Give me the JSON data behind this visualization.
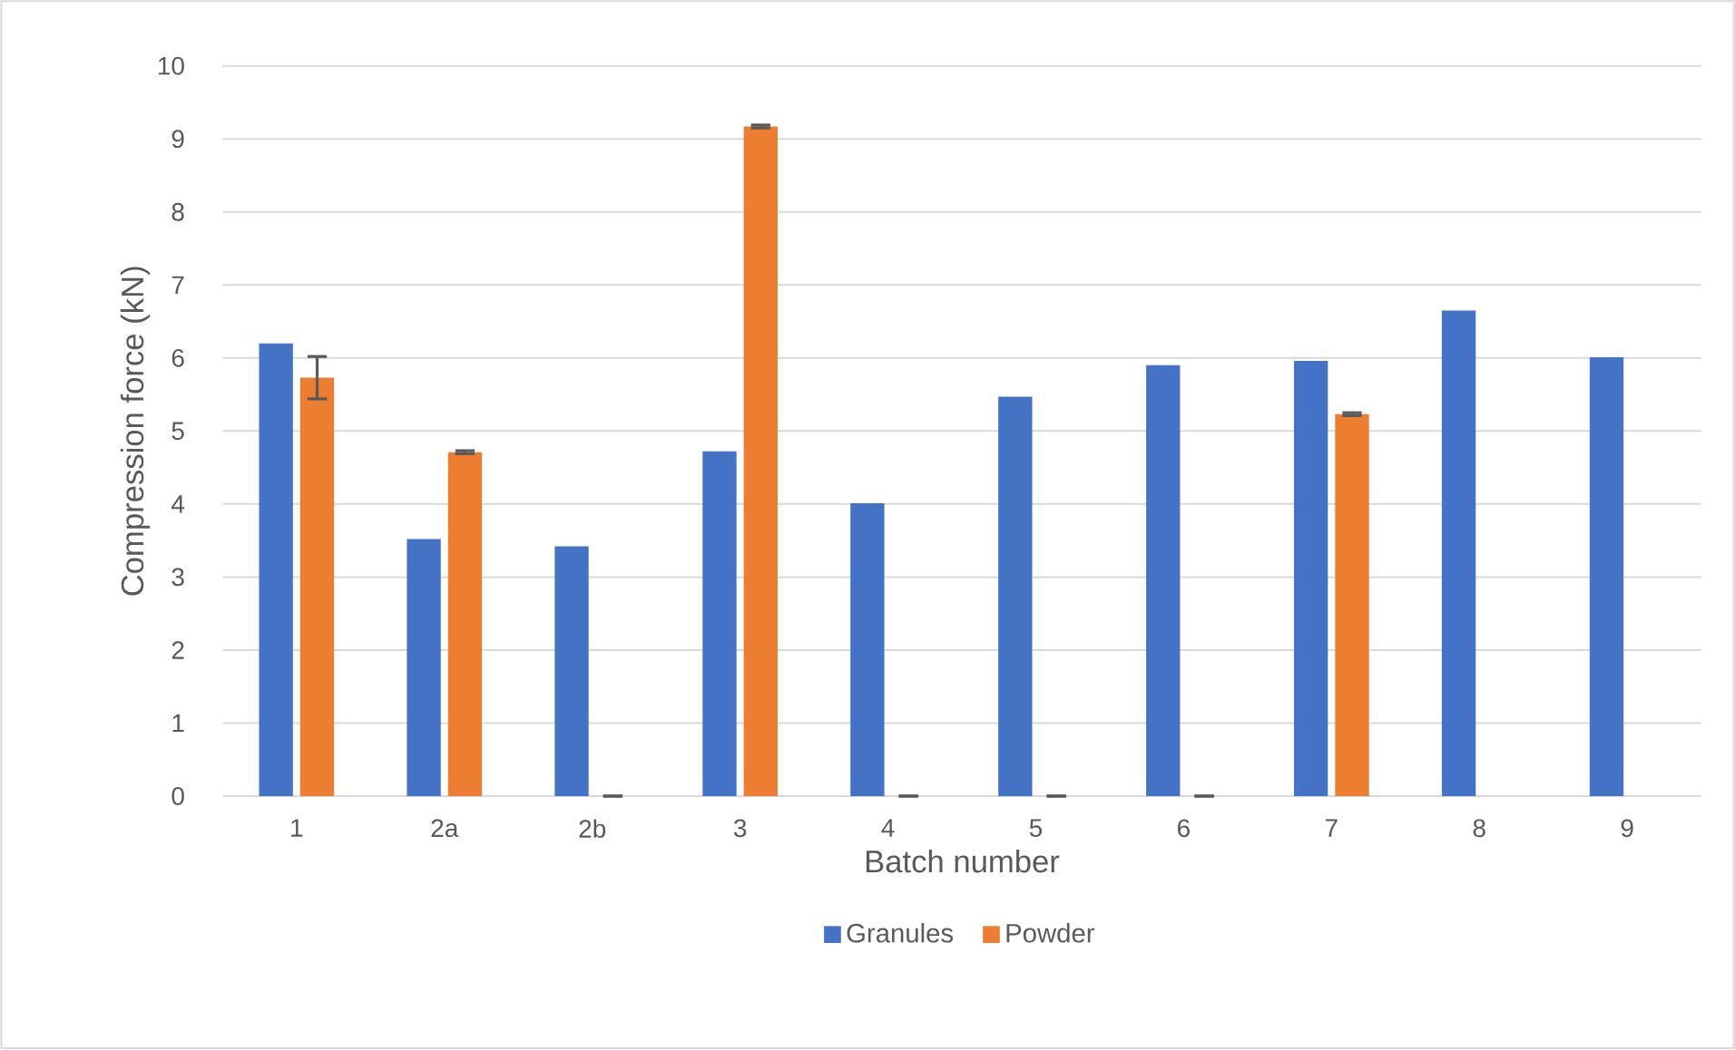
{
  "chart_data": {
    "type": "bar",
    "xlabel": "Batch number",
    "ylabel": "Compression force (kN)",
    "categories": [
      "1",
      "2a",
      "2b",
      "3",
      "4",
      "5",
      "6",
      "7",
      "8",
      "9"
    ],
    "series": [
      {
        "name": "Granules",
        "color": "#4472c4",
        "values": [
          6.2,
          3.52,
          3.42,
          4.72,
          4.01,
          5.47,
          5.9,
          5.96,
          6.65,
          6.01
        ]
      },
      {
        "name": "Powder",
        "color": "#ed7d31",
        "values": [
          5.73,
          4.71,
          0,
          9.17,
          0,
          0,
          0,
          5.23,
          null,
          null
        ],
        "errors": [
          0.29,
          0.02,
          0,
          0.02,
          0,
          0,
          0,
          0.02,
          null,
          null
        ]
      }
    ],
    "ylim": [
      0,
      10
    ],
    "yticks": [
      0,
      1,
      2,
      3,
      4,
      5,
      6,
      7,
      8,
      9,
      10
    ],
    "grid": "y",
    "legend": "bottom"
  }
}
